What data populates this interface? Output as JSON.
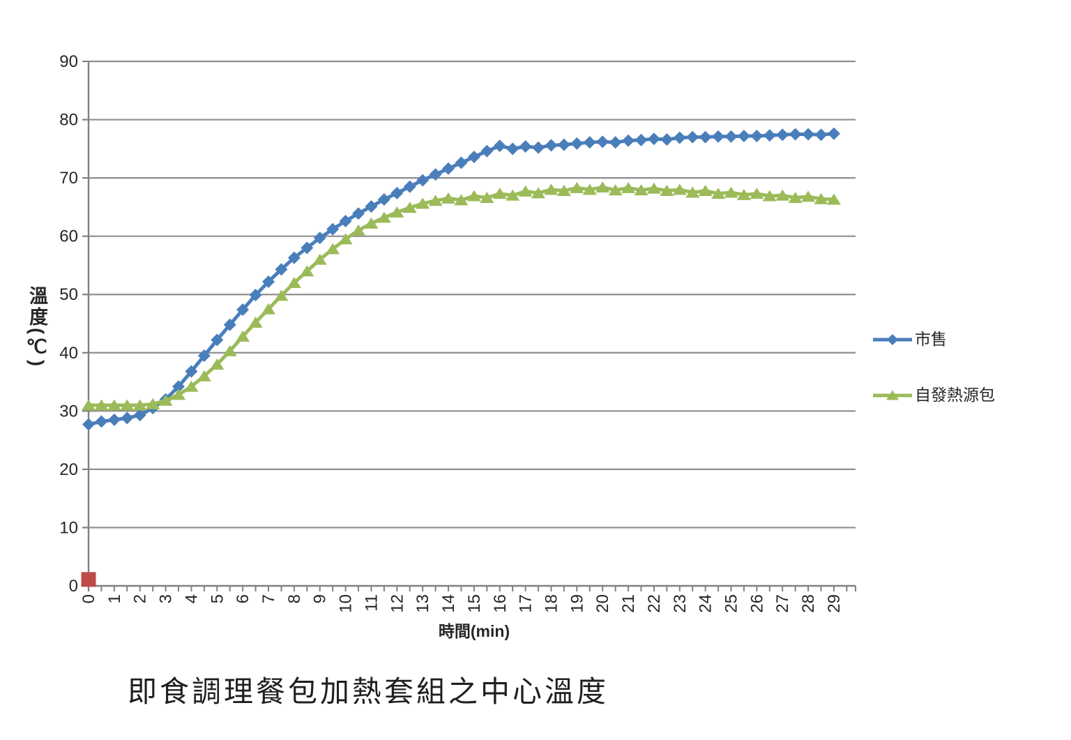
{
  "titles": {
    "bottom_title": "即食調理餐包加熱套組之中心溫度",
    "x_axis": "時間(min)",
    "y_axis": "溫度(℃)"
  },
  "legend": {
    "position": "right-middle",
    "items": [
      {
        "label": "市售",
        "color": "#4A7EBB",
        "marker": "diamond"
      },
      {
        "label": "自發熱源包",
        "color": "#9BBB59",
        "marker": "triangle"
      }
    ]
  },
  "colors": {
    "background": "#FFFFFF",
    "gridline": "#8E8E8E",
    "axis": "#808080",
    "text": "#262626",
    "series_blue": "#4A7EBB",
    "series_green": "#9BBB59",
    "red_point": "#BE4B48"
  },
  "chart_data": {
    "type": "line",
    "title": "即食調理餐包加熱套組之中心溫度",
    "xlabel": "時間(min)",
    "ylabel": "溫度(℃)",
    "xlim": [
      0,
      29.9
    ],
    "ylim": [
      0,
      90
    ],
    "grid": "horizontal-only",
    "legend_position": "right-middle",
    "y_ticks": [
      0,
      10,
      20,
      30,
      40,
      50,
      60,
      70,
      80,
      90
    ],
    "x_ticks": [
      0,
      1,
      2,
      3,
      4,
      5,
      6,
      7,
      8,
      9,
      10,
      11,
      12,
      13,
      14,
      15,
      16,
      17,
      18,
      19,
      20,
      21,
      22,
      23,
      24,
      25,
      26,
      27,
      28,
      29
    ],
    "x": [
      0,
      0.5,
      1,
      1.5,
      2,
      2.5,
      3,
      3.5,
      4,
      4.5,
      5,
      5.5,
      6,
      6.5,
      7,
      7.5,
      8,
      8.5,
      9,
      9.5,
      10,
      10.5,
      11,
      11.5,
      12,
      12.5,
      13,
      13.5,
      14,
      14.5,
      15,
      15.5,
      16,
      16.5,
      17,
      17.5,
      18,
      18.5,
      19,
      19.5,
      20,
      20.5,
      21,
      21.5,
      22,
      22.5,
      23,
      23.5,
      24,
      24.5,
      25,
      25.5,
      26,
      26.5,
      27,
      27.5,
      28,
      28.5,
      29
    ],
    "series": [
      {
        "name": "市售",
        "marker": "diamond",
        "color": "#4A7EBB",
        "values": [
          27.7,
          28.2,
          28.5,
          28.8,
          29.3,
          30.5,
          32,
          34.2,
          36.8,
          39.5,
          42.2,
          44.8,
          47.4,
          49.9,
          52.2,
          54.3,
          56.3,
          58,
          59.7,
          61.2,
          62.6,
          63.9,
          65.1,
          66.3,
          67.4,
          68.5,
          69.6,
          70.6,
          71.6,
          72.6,
          73.6,
          74.6,
          75.5,
          75,
          75.4,
          75.2,
          75.6,
          75.7,
          75.9,
          76.1,
          76.2,
          76.1,
          76.4,
          76.5,
          76.7,
          76.6,
          76.9,
          77,
          77,
          77.1,
          77.1,
          77.2,
          77.2,
          77.3,
          77.4,
          77.5,
          77.5,
          77.4,
          77.6
        ]
      },
      {
        "name": "自發熱源包",
        "marker": "triangle",
        "color": "#9BBB59",
        "values": [
          31,
          31,
          31,
          31,
          31,
          31.2,
          31.8,
          32.8,
          34.2,
          36,
          38,
          40.3,
          42.8,
          45.2,
          47.5,
          49.8,
          52,
          54,
          56,
          57.8,
          59.5,
          61,
          62.2,
          63.2,
          64.1,
          64.9,
          65.6,
          66.1,
          66.5,
          66.2,
          66.9,
          66.6,
          67.3,
          67,
          67.7,
          67.4,
          68,
          67.8,
          68.3,
          68,
          68.4,
          67.9,
          68.3,
          67.9,
          68.2,
          67.8,
          68,
          67.5,
          67.8,
          67.3,
          67.5,
          67.1,
          67.3,
          66.9,
          67,
          66.6,
          66.8,
          66.4,
          66.3
        ]
      },
      {
        "name": "",
        "marker": "square",
        "color": "#BE4B48",
        "x": [
          0
        ],
        "values": [
          1.1
        ]
      }
    ]
  }
}
